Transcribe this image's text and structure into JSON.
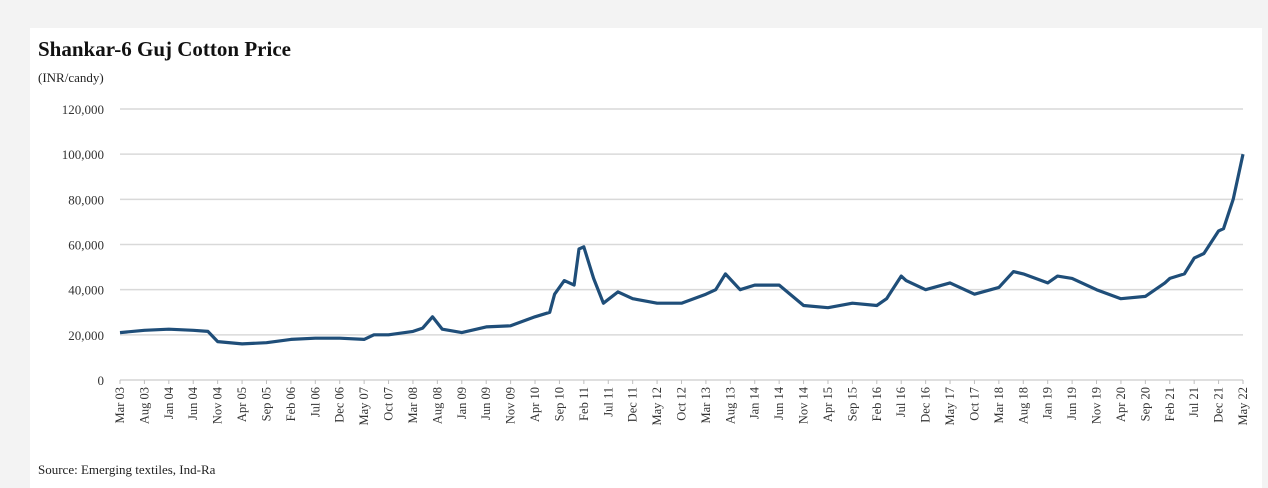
{
  "chart_data": {
    "type": "line",
    "title": "Shankar-6 Guj Cotton Price",
    "ylabel": "(INR/candy)",
    "xlabel": "",
    "source": "Source: Emerging textiles, Ind-Ra",
    "ylim": [
      0,
      120000
    ],
    "yticks": [
      0,
      20000,
      40000,
      60000,
      80000,
      100000,
      120000
    ],
    "ytick_labels": [
      "0",
      "20,000",
      "40,000",
      "60,000",
      "80,000",
      "100,000",
      "120,000"
    ],
    "grid": true,
    "x_tick_step_months": 5,
    "xtick_labels": [
      "Mar 03",
      "Aug 03",
      "Jan 04",
      "Jun 04",
      "Nov 04",
      "Apr 05",
      "Sep 05",
      "Feb 06",
      "Jul 06",
      "Dec 06",
      "May 07",
      "Oct 07",
      "Mar 08",
      "Aug 08",
      "Jan 09",
      "Jun 09",
      "Nov 09",
      "Apr 10",
      "Sep 10",
      "Feb 11",
      "Jul 11",
      "Dec 11",
      "May 12",
      "Oct 12",
      "Mar 13",
      "Aug 13",
      "Jan 14",
      "Jun 14",
      "Nov 14",
      "Apr 15",
      "Sep 15",
      "Feb 16",
      "Jul 16",
      "Dec 16",
      "May 17",
      "Oct 17",
      "Mar 18",
      "Aug 18",
      "Jan 19",
      "Jun 19",
      "Nov 19",
      "Apr 20",
      "Sep 20",
      "Feb 21",
      "Jul 21",
      "Dec 21",
      "May 22"
    ],
    "series": [
      {
        "name": "Shankar-6 Guj Cotton Price",
        "color": "#1f4e79",
        "x_months_since_mar03": [
          0,
          5,
          10,
          15,
          18,
          20,
          25,
          30,
          35,
          40,
          45,
          50,
          52,
          55,
          60,
          62,
          64,
          66,
          70,
          75,
          80,
          85,
          88,
          89,
          91,
          93,
          94,
          95,
          97,
          99,
          102,
          105,
          110,
          115,
          120,
          122,
          124,
          127,
          130,
          135,
          140,
          145,
          150,
          155,
          157,
          160,
          161,
          165,
          170,
          175,
          180,
          183,
          185,
          190,
          192,
          195,
          200,
          205,
          210,
          214,
          215,
          218,
          220,
          222,
          225,
          226,
          228,
          230
        ],
        "values": [
          21000,
          22000,
          22500,
          22000,
          21500,
          17000,
          16000,
          16500,
          18000,
          18500,
          18500,
          18000,
          20000,
          20000,
          21500,
          23000,
          28000,
          22500,
          21000,
          23500,
          24000,
          28000,
          30000,
          38000,
          44000,
          42000,
          58000,
          59000,
          45000,
          34000,
          39000,
          36000,
          34000,
          34000,
          38000,
          40000,
          47000,
          40000,
          42000,
          42000,
          33000,
          32000,
          34000,
          33000,
          36000,
          46000,
          44000,
          40000,
          43000,
          38000,
          41000,
          48000,
          47000,
          43000,
          46000,
          45000,
          40000,
          36000,
          37000,
          43000,
          45000,
          47000,
          54000,
          56000,
          66000,
          67000,
          80000,
          100000
        ]
      }
    ]
  }
}
